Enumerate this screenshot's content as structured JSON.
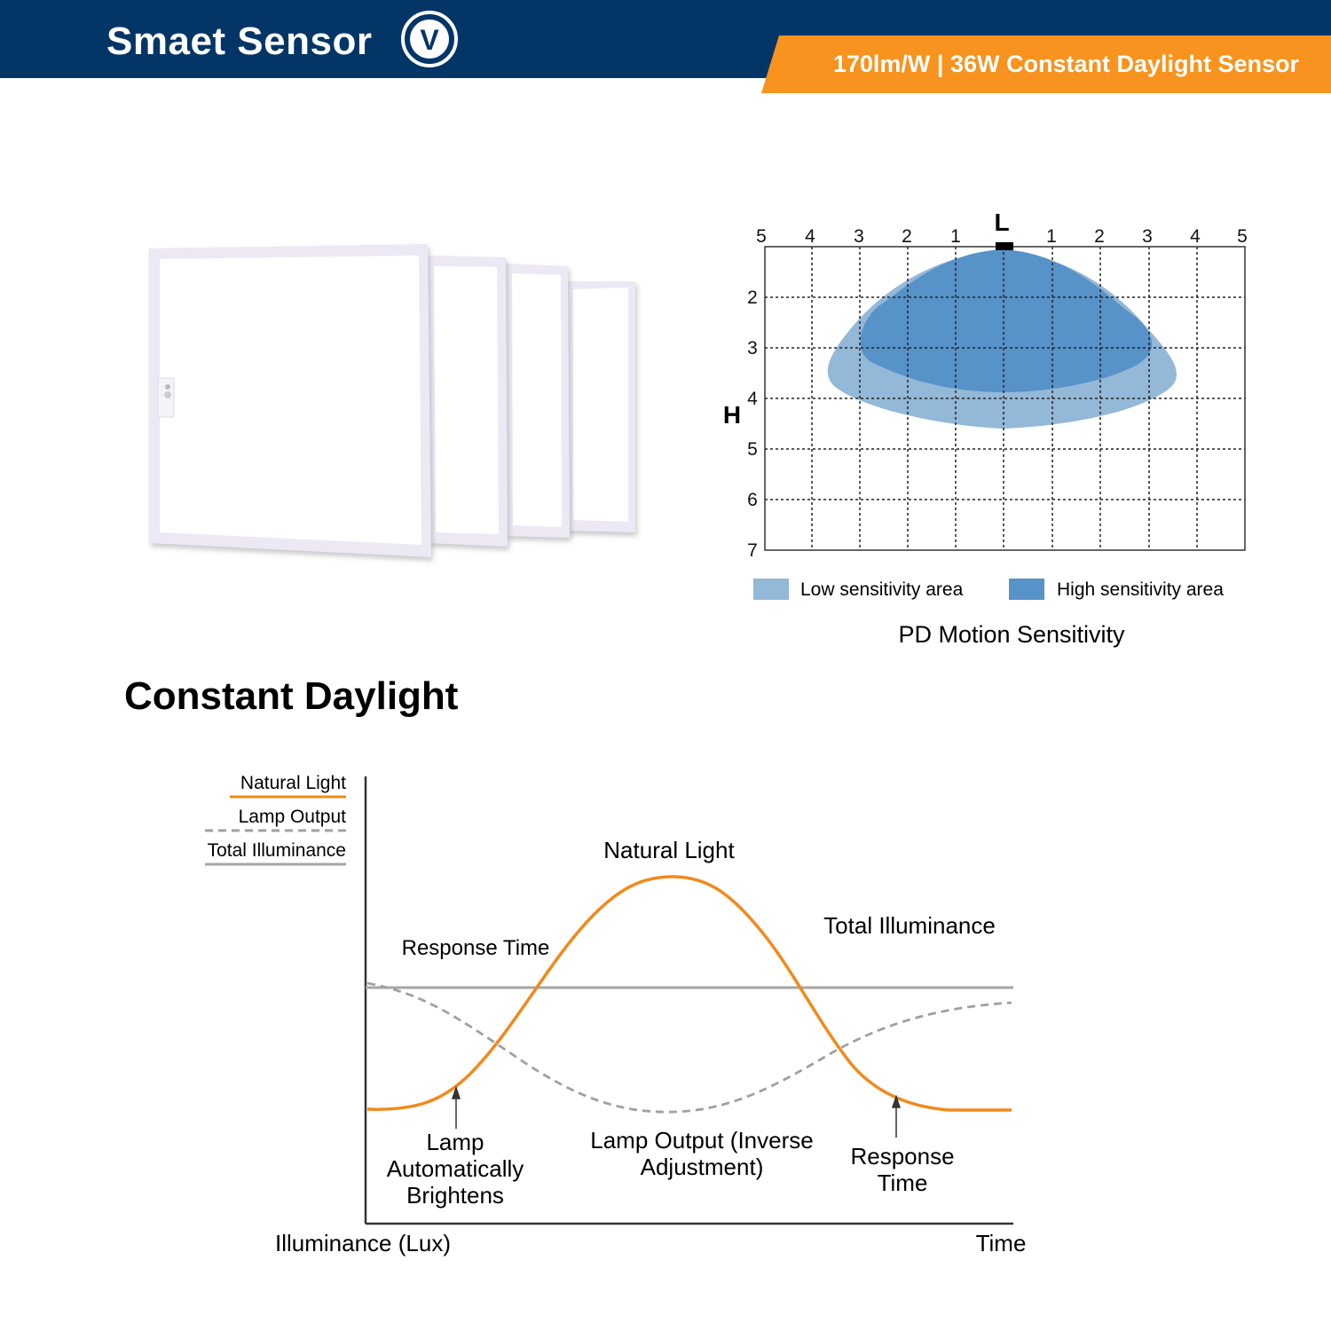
{
  "header": {
    "brand": "Smaet Sensor",
    "logo_letter": "V",
    "tagline": "170lm/W | 36W Constant Daylight Sensor",
    "colors": {
      "bar": "#033567",
      "accent": "#f7931e"
    }
  },
  "product_image": {
    "icon": "led-panel-stack-icon",
    "panels": 4
  },
  "motion_diagram": {
    "top_label": "L",
    "side_label": "H",
    "x_ticks": [
      "5",
      "4",
      "3",
      "2",
      "1",
      "1",
      "2",
      "3",
      "4",
      "5"
    ],
    "y_ticks": [
      "2",
      "3",
      "4",
      "5",
      "6",
      "7"
    ],
    "legend": {
      "low": "Low sensitivity area",
      "high": "High sensitivity area"
    },
    "caption": "PD Motion Sensitivity",
    "colors": {
      "low": "#94b8d7",
      "high": "#5792c9"
    }
  },
  "daylight": {
    "section_title": "Constant Daylight",
    "legend": {
      "natural": "Natural Light",
      "lamp": "Lamp Output",
      "total": "Total Illuminance"
    },
    "labels": {
      "natural_peak": "Natural Light",
      "total": "Total Illuminance",
      "response_left": "Response Time",
      "lamp_brightens": [
        "Lamp",
        "Automatically",
        "Brightens"
      ],
      "lamp_output": [
        "Lamp Output (Inverse",
        "Adjustment)"
      ],
      "response_right": [
        "Response",
        "Time"
      ]
    },
    "axes": {
      "y": "Illuminance (Lux)",
      "x": "Time"
    },
    "colors": {
      "natural": "#f08a1c",
      "lamp": "#a0a0a0",
      "total": "#a6a6a6"
    }
  }
}
